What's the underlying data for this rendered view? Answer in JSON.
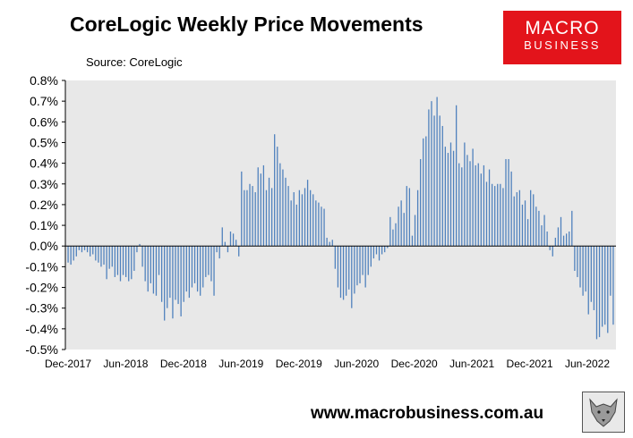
{
  "header": {
    "title": "CoreLogic Weekly Price Movements",
    "source": "Source: CoreLogic",
    "logo_line1": "MACRO",
    "logo_line2": "BUSINESS"
  },
  "footer": {
    "url": "www.macrobusiness.com.au"
  },
  "colors": {
    "bar": "#4f81bd",
    "plot_bg": "#e8e8e8",
    "logo_bg": "#e3141b"
  },
  "chart_data": {
    "type": "bar",
    "title": "CoreLogic Weekly Price Movements",
    "ylim": [
      -0.5,
      0.8
    ],
    "y_ticks": [
      "0.8%",
      "0.7%",
      "0.6%",
      "0.5%",
      "0.4%",
      "0.3%",
      "0.2%",
      "0.1%",
      "0.0%",
      "-0.1%",
      "-0.2%",
      "-0.3%",
      "-0.4%",
      "-0.5%"
    ],
    "x_ticks": [
      "Dec-2017",
      "Jun-2018",
      "Dec-2018",
      "Jun-2019",
      "Dec-2019",
      "Jun-2020",
      "Dec-2020",
      "Jun-2021",
      "Dec-2021",
      "Jun-2022"
    ],
    "grid": false,
    "values": [
      -0.08,
      -0.09,
      -0.07,
      -0.05,
      -0.02,
      -0.03,
      -0.02,
      -0.03,
      -0.05,
      -0.04,
      -0.07,
      -0.08,
      -0.1,
      -0.09,
      -0.16,
      -0.11,
      -0.1,
      -0.15,
      -0.14,
      -0.17,
      -0.14,
      -0.15,
      -0.17,
      -0.16,
      -0.12,
      -0.03,
      0.01,
      -0.1,
      -0.17,
      -0.22,
      -0.18,
      -0.23,
      -0.24,
      -0.14,
      -0.27,
      -0.36,
      -0.3,
      -0.25,
      -0.35,
      -0.26,
      -0.28,
      -0.34,
      -0.27,
      -0.22,
      -0.25,
      -0.2,
      -0.18,
      -0.22,
      -0.24,
      -0.2,
      -0.15,
      -0.14,
      -0.17,
      -0.24,
      -0.03,
      -0.06,
      0.09,
      0.02,
      -0.03,
      0.07,
      0.06,
      0.03,
      -0.05,
      0.36,
      0.27,
      0.27,
      0.3,
      0.29,
      0.26,
      0.38,
      0.35,
      0.39,
      0.27,
      0.33,
      0.28,
      0.54,
      0.48,
      0.4,
      0.37,
      0.33,
      0.29,
      0.22,
      0.26,
      0.2,
      0.27,
      0.25,
      0.28,
      0.32,
      0.27,
      0.25,
      0.22,
      0.21,
      0.19,
      0.18,
      0.04,
      0.02,
      0.03,
      -0.11,
      -0.2,
      -0.25,
      -0.26,
      -0.24,
      -0.21,
      -0.3,
      -0.23,
      -0.19,
      -0.18,
      -0.14,
      -0.2,
      -0.14,
      -0.1,
      -0.06,
      -0.04,
      -0.07,
      -0.04,
      -0.03,
      -0.01,
      0.14,
      0.08,
      0.11,
      0.19,
      0.22,
      0.16,
      0.29,
      0.28,
      0.05,
      0.15,
      0.27,
      0.42,
      0.52,
      0.53,
      0.66,
      0.7,
      0.63,
      0.72,
      0.63,
      0.58,
      0.48,
      0.45,
      0.5,
      0.46,
      0.68,
      0.4,
      0.38,
      0.5,
      0.44,
      0.41,
      0.47,
      0.39,
      0.4,
      0.35,
      0.39,
      0.31,
      0.37,
      0.3,
      0.29,
      0.3,
      0.3,
      0.28,
      0.42,
      0.42,
      0.36,
      0.24,
      0.26,
      0.27,
      0.2,
      0.22,
      0.13,
      0.27,
      0.25,
      0.19,
      0.17,
      0.1,
      0.15,
      0.07,
      -0.02,
      -0.05,
      0.04,
      0.09,
      0.14,
      0.05,
      0.06,
      0.07,
      0.17,
      -0.12,
      -0.15,
      -0.2,
      -0.24,
      -0.22,
      -0.33,
      -0.27,
      -0.31,
      -0.45,
      -0.44,
      -0.39,
      -0.38,
      -0.42,
      -0.24,
      -0.38
    ]
  }
}
